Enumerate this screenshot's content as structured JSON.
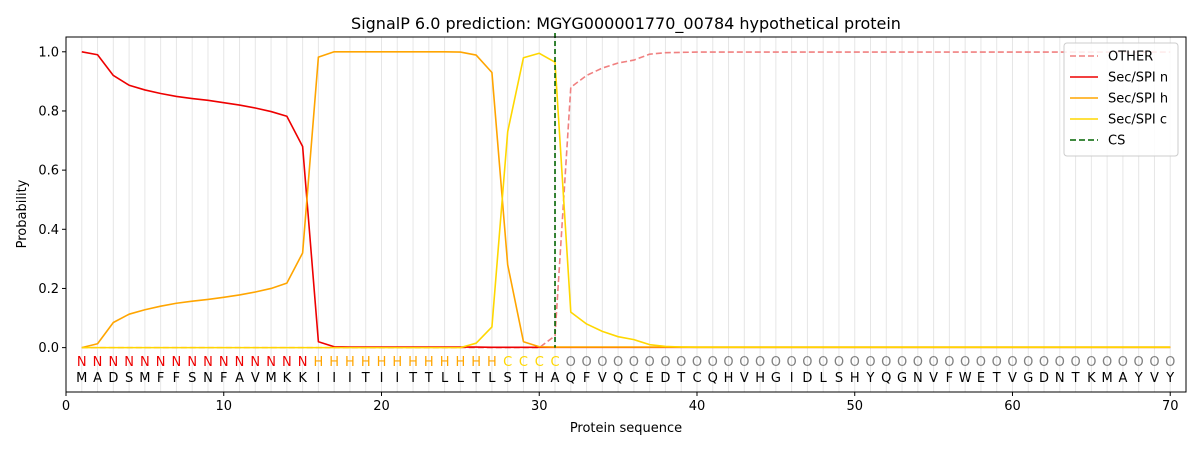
{
  "chart_data": {
    "type": "line",
    "title": "SignalP 6.0 prediction: MGYG000001770_00784 hypothetical protein",
    "xlabel": "Protein sequence",
    "ylabel": "Probability",
    "xlim": [
      0,
      71
    ],
    "ylim": [
      -0.15,
      1.05
    ],
    "xticks": [
      0,
      10,
      20,
      30,
      40,
      50,
      60,
      70
    ],
    "yticks": [
      0.0,
      0.2,
      0.4,
      0.6,
      0.8,
      1.0
    ],
    "x_grid": "vertical lines at every residue position",
    "legend_position": "top-right",
    "sequence": [
      "M",
      "A",
      "D",
      "S",
      "M",
      "F",
      "F",
      "S",
      "N",
      "F",
      "A",
      "V",
      "M",
      "K",
      "K",
      "I",
      "I",
      "I",
      "T",
      "I",
      "I",
      "T",
      "T",
      "L",
      "L",
      "T",
      "L",
      "S",
      "T",
      "H",
      "A",
      "Q",
      "F",
      "V",
      "Q",
      "C",
      "E",
      "D",
      "T",
      "C",
      "Q",
      "H",
      "V",
      "H",
      "G",
      "I",
      "D",
      "L",
      "S",
      "H",
      "Y",
      "Q",
      "G",
      "N",
      "V",
      "F",
      "W",
      "E",
      "T",
      "V",
      "G",
      "D",
      "N",
      "T",
      "K",
      "M",
      "A",
      "Y",
      "V",
      "Y"
    ],
    "labels": [
      "N",
      "N",
      "N",
      "N",
      "N",
      "N",
      "N",
      "N",
      "N",
      "N",
      "N",
      "N",
      "N",
      "N",
      "N",
      "H",
      "H",
      "H",
      "H",
      "H",
      "H",
      "H",
      "H",
      "H",
      "H",
      "H",
      "H",
      "C",
      "C",
      "C",
      "C",
      "O",
      "O",
      "O",
      "O",
      "O",
      "O",
      "O",
      "O",
      "O",
      "O",
      "O",
      "O",
      "O",
      "O",
      "O",
      "O",
      "O",
      "O",
      "O",
      "O",
      "O",
      "O",
      "O",
      "O",
      "O",
      "O",
      "O",
      "O",
      "O",
      "O",
      "O",
      "O",
      "O",
      "O",
      "O",
      "O",
      "O",
      "O",
      "O"
    ],
    "label_colors": {
      "N": "#ee0000",
      "H": "#ffa500",
      "C": "#ffd700",
      "O": "#808080"
    },
    "cleavage_site": 31,
    "series": [
      {
        "name": "OTHER",
        "color": "#f08080",
        "dash": "dashed",
        "values": [
          0,
          0,
          0,
          0,
          0,
          0,
          0,
          0,
          0,
          0,
          0,
          0,
          0,
          0,
          0,
          0,
          0,
          0,
          0,
          0,
          0,
          0,
          0,
          0,
          0,
          0,
          0,
          0,
          0,
          0,
          0.04,
          0.88,
          0.92,
          0.945,
          0.962,
          0.972,
          0.992,
          0.997,
          0.998,
          0.999,
          0.999,
          0.999,
          0.999,
          0.999,
          0.999,
          0.999,
          0.999,
          0.999,
          0.999,
          0.999,
          0.999,
          0.999,
          0.999,
          0.999,
          0.999,
          0.999,
          0.999,
          0.999,
          0.999,
          0.999,
          0.999,
          0.999,
          0.999,
          0.999,
          0.999,
          0.999,
          0.999,
          0.999,
          0.999,
          0.999
        ]
      },
      {
        "name": "Sec/SPI n",
        "color": "#ee0000",
        "dash": "solid",
        "values": [
          1.0,
          0.99,
          0.92,
          0.887,
          0.871,
          0.859,
          0.849,
          0.842,
          0.836,
          0.828,
          0.82,
          0.81,
          0.798,
          0.782,
          0.68,
          0.02,
          0.003,
          0.002,
          0.002,
          0.002,
          0.002,
          0.002,
          0.002,
          0.002,
          0.002,
          0.002,
          0.001,
          0.001,
          0.001,
          0.001,
          0.001,
          0.001,
          0.001,
          0.001,
          0.001,
          0.001,
          0.001,
          0.001,
          0.001,
          0.001,
          0.001,
          0.001,
          0.001,
          0.001,
          0.001,
          0.001,
          0.001,
          0.001,
          0.001,
          0.001,
          0.001,
          0.001,
          0.001,
          0.001,
          0.001,
          0.001,
          0.001,
          0.001,
          0.001,
          0.001,
          0.001,
          0.001,
          0.001,
          0.001,
          0.001,
          0.001,
          0.001,
          0.001,
          0.001,
          0.001
        ]
      },
      {
        "name": "Sec/SPI h",
        "color": "#ffa500",
        "dash": "solid",
        "values": [
          0.0,
          0.013,
          0.085,
          0.113,
          0.128,
          0.14,
          0.15,
          0.157,
          0.163,
          0.17,
          0.178,
          0.188,
          0.2,
          0.218,
          0.32,
          0.982,
          1.0,
          1.0,
          1.0,
          1.0,
          1.0,
          1.0,
          1.0,
          1.0,
          0.999,
          0.989,
          0.93,
          0.28,
          0.02,
          0.003,
          0.002,
          0.002,
          0.002,
          0.002,
          0.002,
          0.002,
          0.002,
          0.002,
          0.002,
          0.002,
          0.002,
          0.002,
          0.002,
          0.002,
          0.002,
          0.002,
          0.002,
          0.002,
          0.002,
          0.002,
          0.002,
          0.002,
          0.002,
          0.002,
          0.002,
          0.002,
          0.002,
          0.002,
          0.002,
          0.002,
          0.002,
          0.002,
          0.002,
          0.002,
          0.002,
          0.002,
          0.002,
          0.002,
          0.002,
          0.002
        ]
      },
      {
        "name": "Sec/SPI c",
        "color": "#ffd700",
        "dash": "solid",
        "values": [
          0,
          0,
          0,
          0,
          0,
          0,
          0,
          0,
          0,
          0,
          0,
          0,
          0,
          0,
          0,
          0,
          0,
          0,
          0,
          0,
          0,
          0,
          0,
          0,
          0,
          0.015,
          0.07,
          0.73,
          0.98,
          0.995,
          0.965,
          0.12,
          0.08,
          0.055,
          0.037,
          0.027,
          0.01,
          0.004,
          0.002,
          0.001,
          0.001,
          0.001,
          0.001,
          0.001,
          0.001,
          0.001,
          0.001,
          0.001,
          0.001,
          0.001,
          0.001,
          0.001,
          0.001,
          0.001,
          0.001,
          0.001,
          0.001,
          0.001,
          0.001,
          0.001,
          0.001,
          0.001,
          0.001,
          0.001,
          0.001,
          0.001,
          0.001,
          0.001,
          0.001,
          0.001
        ]
      }
    ],
    "legend": [
      {
        "name": "OTHER",
        "color": "#f08080",
        "dash": "dashed"
      },
      {
        "name": "Sec/SPI n",
        "color": "#ee0000",
        "dash": "solid"
      },
      {
        "name": "Sec/SPI h",
        "color": "#ffa500",
        "dash": "solid"
      },
      {
        "name": "Sec/SPI c",
        "color": "#ffd700",
        "dash": "solid"
      },
      {
        "name": "CS",
        "color": "#006400",
        "dash": "dashed"
      }
    ]
  }
}
